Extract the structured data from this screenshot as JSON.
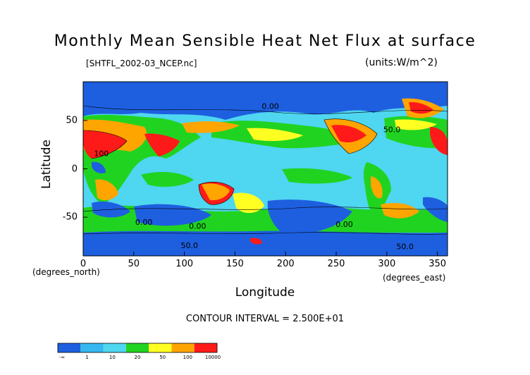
{
  "chart_data": {
    "type": "heatmap",
    "title": "Monthly Mean Sensible Heat Net Flux at surface",
    "subtitle": "[SHTFL_2002-03_NCEP.nc]",
    "units": "(units:W/m^2)",
    "xlabel": "Longitude",
    "ylabel": "Latitude",
    "x_unit_label": "(degrees_east)",
    "y_unit_label": "(degrees_north)",
    "xlim": [
      0,
      360
    ],
    "ylim": [
      -90,
      90
    ],
    "x_ticks": [
      0,
      50,
      100,
      150,
      200,
      250,
      300,
      350
    ],
    "y_ticks": [
      -50,
      0,
      50
    ],
    "contour_interval_text": "CONTOUR INTERVAL = 2.500E+01",
    "colorbar": {
      "boundaries": [
        "-∞",
        "1",
        "10",
        "20",
        "50",
        "100",
        "10000"
      ],
      "colors": [
        "#1e5fe0",
        "#35b8f0",
        "#4fd6f0",
        "#21d321",
        "#ffff22",
        "#ffa500",
        "#ff1a1a"
      ]
    },
    "contour_labels": [
      {
        "text": "0.00",
        "lon": 185,
        "lat": 62
      },
      {
        "text": "50.0",
        "lon": 305,
        "lat": 38
      },
      {
        "text": "100",
        "lon": 18,
        "lat": 13
      },
      {
        "text": "0.00",
        "lon": 60,
        "lat": -58
      },
      {
        "text": "0.00",
        "lon": 113,
        "lat": -62
      },
      {
        "text": "0.00",
        "lon": 258,
        "lat": -60
      },
      {
        "text": "50.0",
        "lon": 105,
        "lat": -82
      },
      {
        "text": "50.0",
        "lon": 318,
        "lat": -83
      }
    ]
  }
}
